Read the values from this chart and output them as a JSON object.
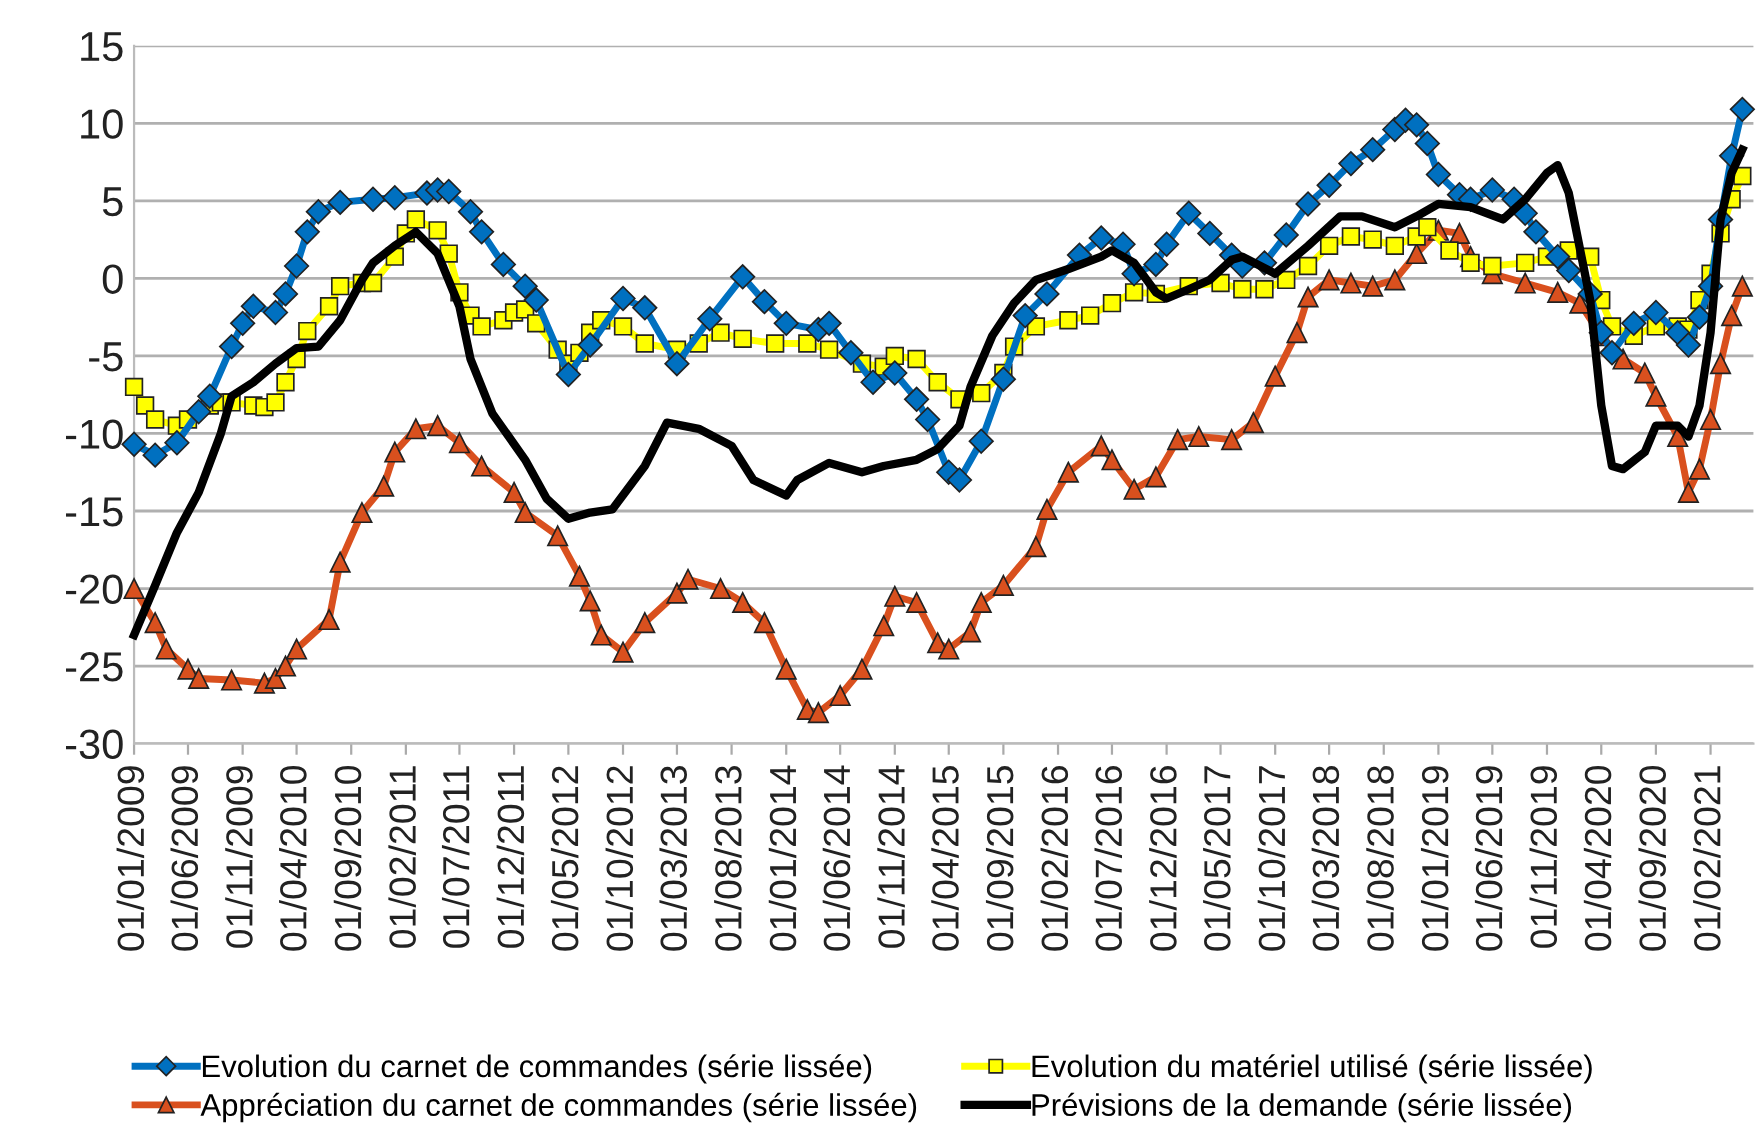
{
  "chart_data": {
    "type": "line",
    "xlim": [
      "2009-01-01",
      "2021-06-01"
    ],
    "ylim": [
      -30,
      15
    ],
    "yticks": [
      -30,
      -25,
      -20,
      -15,
      -10,
      -5,
      0,
      5,
      10,
      15
    ],
    "xticks": [
      {
        "value": "2009-01-01",
        "label": "01/01/2009"
      },
      {
        "value": "2009-06-01",
        "label": "01/06/2009"
      },
      {
        "value": "2009-11-01",
        "label": "01/11/2009"
      },
      {
        "value": "2010-04-01",
        "label": "01/04/2010"
      },
      {
        "value": "2010-09-01",
        "label": "01/09/2010"
      },
      {
        "value": "2011-02-01",
        "label": "01/02/2011"
      },
      {
        "value": "2011-07-01",
        "label": "01/07/2011"
      },
      {
        "value": "2011-12-01",
        "label": "01/12/2011"
      },
      {
        "value": "2012-05-01",
        "label": "01/05/2012"
      },
      {
        "value": "2012-10-01",
        "label": "01/10/2012"
      },
      {
        "value": "2013-03-01",
        "label": "01/03/2013"
      },
      {
        "value": "2013-08-01",
        "label": "01/08/2013"
      },
      {
        "value": "2014-01-01",
        "label": "01/01/2014"
      },
      {
        "value": "2014-06-01",
        "label": "01/06/2014"
      },
      {
        "value": "2014-11-01",
        "label": "01/11/2014"
      },
      {
        "value": "2015-04-01",
        "label": "01/04/2015"
      },
      {
        "value": "2015-09-01",
        "label": "01/09/2015"
      },
      {
        "value": "2016-02-01",
        "label": "01/02/2016"
      },
      {
        "value": "2016-07-01",
        "label": "01/07/2016"
      },
      {
        "value": "2016-12-01",
        "label": "01/12/2016"
      },
      {
        "value": "2017-05-01",
        "label": "01/05/2017"
      },
      {
        "value": "2017-10-01",
        "label": "01/10/2017"
      },
      {
        "value": "2018-03-01",
        "label": "01/03/2018"
      },
      {
        "value": "2018-08-01",
        "label": "01/08/2018"
      },
      {
        "value": "2019-01-01",
        "label": "01/01/2019"
      },
      {
        "value": "2019-06-01",
        "label": "01/06/2019"
      },
      {
        "value": "2019-11-01",
        "label": "01/11/2019"
      },
      {
        "value": "2020-04-01",
        "label": "01/04/2020"
      },
      {
        "value": "2020-09-01",
        "label": "01/09/2020"
      },
      {
        "value": "2021-02-01",
        "label": "01/02/2021"
      }
    ],
    "grid": "y",
    "legend": "bottom",
    "series": [
      {
        "name": "Evolution du carnet de commandes (série lissée)",
        "color": "#0070c0",
        "marker": "diamond",
        "x": [
          "2009-01",
          "2009-03",
          "2009-05",
          "2009-07",
          "2009-08",
          "2009-10",
          "2009-11",
          "2009-12",
          "2010-02",
          "2010-03",
          "2010-04",
          "2010-05",
          "2010-06",
          "2010-08",
          "2010-11",
          "2011-01",
          "2011-04",
          "2011-05",
          "2011-06",
          "2011-08",
          "2011-09",
          "2011-11",
          "2012-01",
          "2012-02",
          "2012-05",
          "2012-07",
          "2012-10",
          "2012-12",
          "2013-03",
          "2013-06",
          "2013-09",
          "2013-11",
          "2014-01",
          "2014-04",
          "2014-05",
          "2014-07",
          "2014-09",
          "2014-11",
          "2015-01",
          "2015-02",
          "2015-04",
          "2015-05",
          "2015-07",
          "2015-09",
          "2015-11",
          "2016-01",
          "2016-04",
          "2016-06",
          "2016-08",
          "2016-09",
          "2016-11",
          "2016-12",
          "2017-02",
          "2017-04",
          "2017-06",
          "2017-07",
          "2017-09",
          "2017-11",
          "2018-01",
          "2018-03",
          "2018-05",
          "2018-07",
          "2018-09",
          "2018-10",
          "2018-11",
          "2018-12",
          "2019-01",
          "2019-03",
          "2019-04",
          "2019-06",
          "2019-08",
          "2019-09",
          "2019-10",
          "2019-12",
          "2020-01",
          "2020-03",
          "2020-04",
          "2020-05",
          "2020-07",
          "2020-09",
          "2020-11",
          "2020-12",
          "2021-01",
          "2021-02",
          "2021-03",
          "2021-04",
          "2021-05"
        ],
        "values": [
          -10.7,
          -11.4,
          -10.6,
          -8.6,
          -7.6,
          -4.4,
          -2.9,
          -1.8,
          -2.2,
          -1.0,
          0.8,
          3.0,
          4.3,
          4.9,
          5.1,
          5.2,
          5.5,
          5.7,
          5.6,
          4.3,
          3.0,
          0.9,
          -0.5,
          -1.4,
          -6.2,
          -4.3,
          -1.3,
          -1.9,
          -5.5,
          -2.6,
          0.1,
          -1.5,
          -2.9,
          -3.3,
          -2.9,
          -4.8,
          -6.7,
          -6.1,
          -7.8,
          -9.1,
          -12.5,
          -13.0,
          -10.5,
          -6.5,
          -2.4,
          -1.0,
          1.5,
          2.6,
          2.2,
          0.3,
          0.9,
          2.2,
          4.2,
          2.9,
          1.5,
          0.8,
          1.0,
          2.8,
          4.8,
          6.0,
          7.4,
          8.3,
          9.6,
          10.2,
          9.9,
          8.7,
          6.7,
          5.4,
          5.1,
          5.7,
          5.1,
          4.2,
          3.0,
          1.4,
          0.5,
          -1.0,
          -3.5,
          -4.8,
          -2.9,
          -2.2,
          -3.5,
          -4.3,
          -2.5,
          -0.5,
          3.8,
          7.9,
          10.9
        ]
      },
      {
        "name": "Evolution du matériel utilisé (série lissée)",
        "color": "#ffff00",
        "marker": "square",
        "x": [
          "2009-01",
          "2009-02",
          "2009-03",
          "2009-05",
          "2009-06",
          "2009-08",
          "2009-09",
          "2009-10",
          "2009-12",
          "2010-01",
          "2010-02",
          "2010-03",
          "2010-04",
          "2010-05",
          "2010-07",
          "2010-08",
          "2010-10",
          "2010-11",
          "2011-01",
          "2011-02",
          "2011-03",
          "2011-05",
          "2011-06",
          "2011-07",
          "2011-08",
          "2011-09",
          "2011-11",
          "2011-12",
          "2012-01",
          "2012-02",
          "2012-04",
          "2012-05",
          "2012-06",
          "2012-07",
          "2012-08",
          "2012-10",
          "2012-12",
          "2013-03",
          "2013-05",
          "2013-07",
          "2013-09",
          "2013-12",
          "2014-03",
          "2014-05",
          "2014-08",
          "2014-10",
          "2014-11",
          "2015-01",
          "2015-03",
          "2015-05",
          "2015-07",
          "2015-09",
          "2015-10",
          "2015-12",
          "2016-03",
          "2016-05",
          "2016-07",
          "2016-09",
          "2016-11",
          "2017-02",
          "2017-05",
          "2017-07",
          "2017-09",
          "2017-11",
          "2018-01",
          "2018-03",
          "2018-05",
          "2018-07",
          "2018-09",
          "2018-11",
          "2018-12",
          "2019-02",
          "2019-04",
          "2019-06",
          "2019-09",
          "2019-11",
          "2020-01",
          "2020-03",
          "2020-04",
          "2020-05",
          "2020-07",
          "2020-09",
          "2020-11",
          "2020-12",
          "2021-01",
          "2021-02",
          "2021-03",
          "2021-04",
          "2021-05"
        ],
        "values": [
          -7.0,
          -8.2,
          -9.1,
          -9.5,
          -9.1,
          -8.2,
          -8.0,
          -8.0,
          -8.2,
          -8.3,
          -8.0,
          -6.7,
          -5.2,
          -3.4,
          -1.8,
          -0.5,
          -0.3,
          -0.3,
          1.4,
          2.9,
          3.8,
          3.1,
          1.6,
          -0.9,
          -2.4,
          -3.1,
          -2.7,
          -2.2,
          -2.0,
          -2.9,
          -4.6,
          -5.5,
          -4.8,
          -3.5,
          -2.7,
          -3.1,
          -4.2,
          -4.6,
          -4.2,
          -3.5,
          -3.9,
          -4.2,
          -4.2,
          -4.6,
          -5.5,
          -5.7,
          -5.0,
          -5.2,
          -6.7,
          -7.8,
          -7.4,
          -6.1,
          -4.4,
          -3.1,
          -2.7,
          -2.4,
          -1.6,
          -0.9,
          -1.0,
          -0.5,
          -0.3,
          -0.7,
          -0.7,
          -0.1,
          0.8,
          2.1,
          2.7,
          2.5,
          2.1,
          2.7,
          3.3,
          1.8,
          1.0,
          0.8,
          1.0,
          1.4,
          1.8,
          1.4,
          -1.4,
          -3.1,
          -3.7,
          -3.1,
          -3.1,
          -3.3,
          -1.4,
          0.3,
          2.9,
          5.1,
          6.6
        ]
      },
      {
        "name": "Appréciation du carnet de commandes (série lissée)",
        "color": "#d9501e",
        "marker": "triangle",
        "x": [
          "2009-01",
          "2009-03",
          "2009-04",
          "2009-06",
          "2009-07",
          "2009-10",
          "2010-01",
          "2010-02",
          "2010-03",
          "2010-04",
          "2010-07",
          "2010-08",
          "2010-10",
          "2010-12",
          "2011-01",
          "2011-03",
          "2011-05",
          "2011-07",
          "2011-09",
          "2011-12",
          "2012-01",
          "2012-04",
          "2012-06",
          "2012-07",
          "2012-08",
          "2012-10",
          "2012-12",
          "2013-03",
          "2013-04",
          "2013-07",
          "2013-09",
          "2013-11",
          "2014-01",
          "2014-03",
          "2014-04",
          "2014-06",
          "2014-08",
          "2014-10",
          "2014-11",
          "2015-01",
          "2015-03",
          "2015-04",
          "2015-06",
          "2015-07",
          "2015-09",
          "2015-12",
          "2016-01",
          "2016-03",
          "2016-06",
          "2016-07",
          "2016-09",
          "2016-11",
          "2017-01",
          "2017-03",
          "2017-06",
          "2017-08",
          "2017-10",
          "2017-12",
          "2018-01",
          "2018-03",
          "2018-05",
          "2018-07",
          "2018-09",
          "2018-11",
          "2019-01",
          "2019-03",
          "2019-04",
          "2019-06",
          "2019-09",
          "2019-12",
          "2020-02",
          "2020-04",
          "2020-06",
          "2020-08",
          "2020-09",
          "2020-11",
          "2020-12",
          "2021-01",
          "2021-02",
          "2021-03",
          "2021-04",
          "2021-05"
        ],
        "values": [
          -20.0,
          -22.2,
          -23.9,
          -25.2,
          -25.8,
          -25.9,
          -26.1,
          -25.8,
          -25.0,
          -23.9,
          -22.0,
          -18.3,
          -15.1,
          -13.4,
          -11.2,
          -9.7,
          -9.5,
          -10.6,
          -12.1,
          -13.8,
          -15.1,
          -16.6,
          -19.2,
          -20.8,
          -23.0,
          -24.1,
          -22.2,
          -20.3,
          -19.4,
          -20.0,
          -20.9,
          -22.2,
          -25.2,
          -27.8,
          -28.0,
          -26.9,
          -25.2,
          -22.4,
          -20.5,
          -20.9,
          -23.5,
          -23.9,
          -22.8,
          -20.9,
          -19.8,
          -17.3,
          -14.9,
          -12.5,
          -10.8,
          -11.7,
          -13.6,
          -12.8,
          -10.4,
          -10.2,
          -10.4,
          -9.3,
          -6.3,
          -3.5,
          -1.2,
          -0.1,
          -0.3,
          -0.5,
          -0.1,
          1.6,
          3.1,
          2.9,
          1.4,
          0.3,
          -0.3,
          -0.9,
          -1.6,
          -3.7,
          -5.2,
          -6.1,
          -7.6,
          -10.2,
          -13.8,
          -12.3,
          -9.1,
          -5.5,
          -2.4,
          -0.5
        ]
      },
      {
        "name": "Prévisions de la demande (série lissée)",
        "color": "#000000",
        "marker": "none",
        "x": [
          "2009-01",
          "2009-03",
          "2009-05",
          "2009-07",
          "2009-09",
          "2009-10",
          "2009-12",
          "2010-02",
          "2010-04",
          "2010-06",
          "2010-08",
          "2010-10",
          "2010-11",
          "2011-01",
          "2011-03",
          "2011-05",
          "2011-07",
          "2011-08",
          "2011-10",
          "2012-01",
          "2012-03",
          "2012-05",
          "2012-07",
          "2012-09",
          "2012-12",
          "2013-02",
          "2013-05",
          "2013-08",
          "2013-10",
          "2014-01",
          "2014-02",
          "2014-05",
          "2014-08",
          "2014-10",
          "2015-01",
          "2015-03",
          "2015-05",
          "2015-06",
          "2015-08",
          "2015-10",
          "2015-12",
          "2016-03",
          "2016-06",
          "2016-07",
          "2016-09",
          "2016-11",
          "2016-12",
          "2017-02",
          "2017-04",
          "2017-06",
          "2017-07",
          "2017-10",
          "2018-01",
          "2018-04",
          "2018-06",
          "2018-09",
          "2018-11",
          "2019-01",
          "2019-04",
          "2019-07",
          "2019-09",
          "2019-11",
          "2019-12",
          "2020-01",
          "2020-03",
          "2020-04",
          "2020-05",
          "2020-06",
          "2020-08",
          "2020-09",
          "2020-11",
          "2020-12",
          "2021-01",
          "2021-02",
          "2021-03",
          "2021-04",
          "2021-05"
        ],
        "values": [
          -23.0,
          -19.8,
          -16.4,
          -13.8,
          -10.0,
          -7.6,
          -6.7,
          -5.5,
          -4.5,
          -4.4,
          -2.7,
          -0.1,
          1.0,
          2.1,
          3.0,
          1.6,
          -1.8,
          -5.2,
          -8.7,
          -11.7,
          -14.2,
          -15.5,
          -15.1,
          -14.9,
          -12.1,
          -9.3,
          -9.7,
          -10.8,
          -13.0,
          -14.0,
          -13.0,
          -11.9,
          -12.5,
          -12.1,
          -11.7,
          -11.0,
          -9.5,
          -7.0,
          -3.7,
          -1.6,
          -0.1,
          0.6,
          1.4,
          1.8,
          1.0,
          -0.9,
          -1.3,
          -0.7,
          -0.1,
          1.2,
          1.4,
          0.3,
          2.1,
          4.0,
          4.0,
          3.3,
          4.0,
          4.8,
          4.6,
          3.8,
          5.1,
          6.8,
          7.3,
          5.5,
          -1.4,
          -8.2,
          -12.1,
          -12.3,
          -11.2,
          -9.5,
          -9.5,
          -10.2,
          -8.2,
          -3.5,
          3.8,
          6.8,
          8.3
        ]
      }
    ]
  }
}
